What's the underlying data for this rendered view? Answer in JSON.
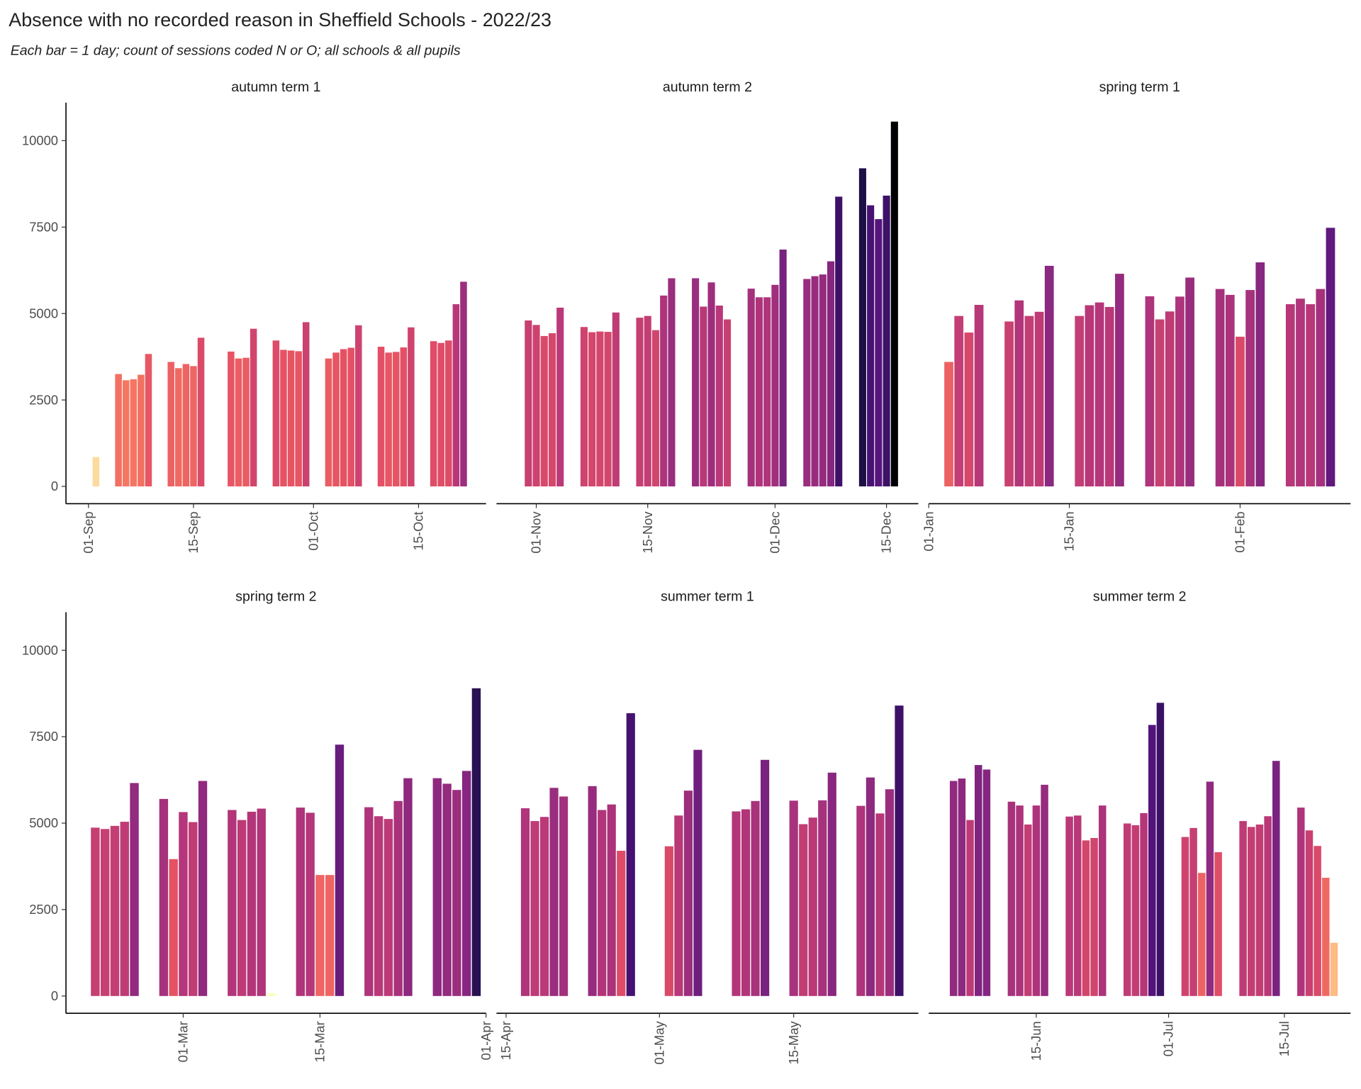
{
  "title": "Absence with no recorded reason in Sheffield Schools - 2022/23",
  "subtitle": "Each bar = 1 day; count of sessions coded N or O; all schools & all pupils",
  "colormap": "magma_r",
  "chart_data": [
    {
      "type": "bar",
      "title": "autumn term 1",
      "x": [
        "02-Sep",
        "05-Sep",
        "06-Sep",
        "07-Sep",
        "08-Sep",
        "09-Sep",
        "12-Sep",
        "13-Sep",
        "14-Sep",
        "15-Sep",
        "16-Sep",
        "20-Sep",
        "21-Sep",
        "22-Sep",
        "23-Sep",
        "26-Sep",
        "27-Sep",
        "28-Sep",
        "29-Sep",
        "30-Sep",
        "03-Oct",
        "04-Oct",
        "05-Oct",
        "06-Oct",
        "07-Oct",
        "10-Oct",
        "11-Oct",
        "12-Oct",
        "13-Oct",
        "14-Oct",
        "17-Oct",
        "18-Oct",
        "19-Oct",
        "20-Oct",
        "21-Oct"
      ],
      "values": [
        850,
        3250,
        3070,
        3100,
        3230,
        3830,
        3600,
        3420,
        3540,
        3480,
        4300,
        3900,
        3700,
        3720,
        4560,
        4220,
        3950,
        3930,
        3910,
        4750,
        3700,
        3870,
        3970,
        4010,
        4660,
        4040,
        3870,
        3890,
        4020,
        4600,
        4200,
        4150,
        4220,
        5270,
        5920
      ],
      "xlim": [
        "29-Aug",
        "24-Oct"
      ],
      "xticks": [
        "01-Sep",
        "15-Sep",
        "01-Oct",
        "15-Oct"
      ],
      "ylim": [
        -500,
        11100
      ],
      "yticks": [
        0,
        2500,
        5000,
        7500,
        10000
      ]
    },
    {
      "type": "bar",
      "title": "autumn term 2",
      "x": [
        "31-Oct",
        "01-Nov",
        "02-Nov",
        "03-Nov",
        "04-Nov",
        "07-Nov",
        "08-Nov",
        "09-Nov",
        "10-Nov",
        "11-Nov",
        "14-Nov",
        "15-Nov",
        "16-Nov",
        "17-Nov",
        "18-Nov",
        "21-Nov",
        "22-Nov",
        "23-Nov",
        "24-Nov",
        "25-Nov",
        "28-Nov",
        "29-Nov",
        "30-Nov",
        "01-Dec",
        "02-Dec",
        "05-Dec",
        "06-Dec",
        "07-Dec",
        "08-Dec",
        "09-Dec",
        "12-Dec",
        "13-Dec",
        "14-Dec",
        "15-Dec",
        "16-Dec"
      ],
      "values": [
        4800,
        4670,
        4350,
        4430,
        5170,
        4610,
        4460,
        4480,
        4470,
        5030,
        4880,
        4930,
        4520,
        5520,
        6020,
        6020,
        5200,
        5900,
        5230,
        4830,
        5720,
        5470,
        5470,
        5830,
        6850,
        6000,
        6080,
        6130,
        6510,
        8380,
        9200,
        8130,
        7730,
        8410,
        10550
      ],
      "xlim": [
        "27-Oct",
        "19-Dec"
      ],
      "xticks": [
        "01-Nov",
        "15-Nov",
        "01-Dec",
        "15-Dec"
      ],
      "ylim": [
        -500,
        11100
      ],
      "yticks": [
        0,
        2500,
        5000,
        7500,
        10000
      ]
    },
    {
      "type": "bar",
      "title": "spring term 1",
      "x": [
        "03-Jan",
        "04-Jan",
        "05-Jan",
        "06-Jan",
        "09-Jan",
        "10-Jan",
        "11-Jan",
        "12-Jan",
        "13-Jan",
        "16-Jan",
        "17-Jan",
        "18-Jan",
        "19-Jan",
        "20-Jan",
        "23-Jan",
        "24-Jan",
        "25-Jan",
        "26-Jan",
        "27-Jan",
        "30-Jan",
        "31-Jan",
        "01-Feb",
        "02-Feb",
        "03-Feb",
        "06-Feb",
        "07-Feb",
        "08-Feb",
        "09-Feb",
        "10-Feb"
      ],
      "values": [
        3600,
        4930,
        4450,
        5250,
        4770,
        5380,
        4930,
        5050,
        6380,
        4930,
        5240,
        5320,
        5190,
        6150,
        5500,
        4830,
        5060,
        5490,
        6040,
        5710,
        5540,
        4330,
        5680,
        6480,
        5270,
        5430,
        5270,
        5710,
        7480
      ],
      "xlim": [
        "01-Jan",
        "12-Feb"
      ],
      "xticks": [
        "01-Jan",
        "15-Jan",
        "01-Feb"
      ],
      "ylim": [
        -500,
        11100
      ],
      "yticks": [
        0,
        2500,
        5000,
        7500,
        10000
      ]
    },
    {
      "type": "bar",
      "title": "spring term 2",
      "x": [
        "20-Feb",
        "21-Feb",
        "22-Feb",
        "23-Feb",
        "24-Feb",
        "27-Feb",
        "28-Feb",
        "01-Mar",
        "02-Mar",
        "03-Mar",
        "06-Mar",
        "07-Mar",
        "08-Mar",
        "09-Mar",
        "10-Mar",
        "13-Mar",
        "14-Mar",
        "15-Mar",
        "16-Mar",
        "17-Mar",
        "20-Mar",
        "21-Mar",
        "22-Mar",
        "23-Mar",
        "24-Mar",
        "27-Mar",
        "28-Mar",
        "29-Mar",
        "30-Mar",
        "31-Mar"
      ],
      "values": [
        4870,
        4830,
        4920,
        5040,
        6160,
        5700,
        3960,
        5320,
        5030,
        6220,
        5380,
        5090,
        5330,
        5420,
        80,
        5450,
        5300,
        3500,
        3500,
        7270,
        5460,
        5200,
        5120,
        5640,
        6300,
        6300,
        6140,
        5960,
        6510,
        8900
      ],
      "xlim": [
        "17-Feb",
        "01-Apr"
      ],
      "xticks": [
        "01-Mar",
        "15-Mar",
        "01-Apr"
      ],
      "ylim": [
        -500,
        11100
      ],
      "yticks": [
        0,
        2500,
        5000,
        7500,
        10000
      ]
    },
    {
      "type": "bar",
      "title": "summer term 1",
      "x": [
        "17-Apr",
        "18-Apr",
        "19-Apr",
        "20-Apr",
        "21-Apr",
        "24-Apr",
        "25-Apr",
        "26-Apr",
        "27-Apr",
        "28-Apr",
        "02-May",
        "03-May",
        "04-May",
        "05-May",
        "09-May",
        "10-May",
        "11-May",
        "12-May",
        "15-May",
        "16-May",
        "17-May",
        "18-May",
        "19-May",
        "22-May",
        "23-May",
        "24-May",
        "25-May",
        "26-May"
      ],
      "values": [
        5430,
        5060,
        5180,
        6020,
        5770,
        6070,
        5380,
        5540,
        4200,
        8180,
        4330,
        5220,
        5940,
        7120,
        5340,
        5400,
        5640,
        6830,
        5650,
        4970,
        5160,
        5660,
        6460,
        5500,
        6320,
        5280,
        5980,
        8400
      ],
      "xlim": [
        "14-Apr",
        "28-May"
      ],
      "xticks": [
        "15-Apr",
        "01-May",
        "15-May"
      ],
      "ylim": [
        -500,
        11100
      ],
      "yticks": [
        0,
        2500,
        5000,
        7500,
        10000
      ]
    },
    {
      "type": "bar",
      "title": "summer term 2",
      "x": [
        "05-Jun",
        "06-Jun",
        "07-Jun",
        "08-Jun",
        "09-Jun",
        "12-Jun",
        "13-Jun",
        "14-Jun",
        "15-Jun",
        "16-Jun",
        "19-Jun",
        "20-Jun",
        "21-Jun",
        "22-Jun",
        "23-Jun",
        "26-Jun",
        "27-Jun",
        "28-Jun",
        "29-Jun",
        "30-Jun",
        "03-Jul",
        "04-Jul",
        "05-Jul",
        "06-Jul",
        "07-Jul",
        "10-Jul",
        "11-Jul",
        "12-Jul",
        "13-Jul",
        "14-Jul",
        "17-Jul",
        "18-Jul",
        "19-Jul",
        "20-Jul",
        "21-Jul"
      ],
      "values": [
        6220,
        6290,
        5090,
        6680,
        6550,
        5620,
        5510,
        4960,
        5510,
        6110,
        5190,
        5220,
        4500,
        4570,
        5510,
        4990,
        4940,
        5290,
        7840,
        8480,
        4600,
        4860,
        3560,
        6200,
        4160,
        5060,
        4890,
        4960,
        5200,
        6800,
        5450,
        4790,
        4340,
        3420,
        1540
      ],
      "xlim": [
        "02-Jun",
        "23-Jul"
      ],
      "xticks": [
        "15-Jun",
        "01-Jul",
        "15-Jul"
      ],
      "ylim": [
        -500,
        11100
      ],
      "yticks": [
        0,
        2500,
        5000,
        7500,
        10000
      ]
    }
  ]
}
